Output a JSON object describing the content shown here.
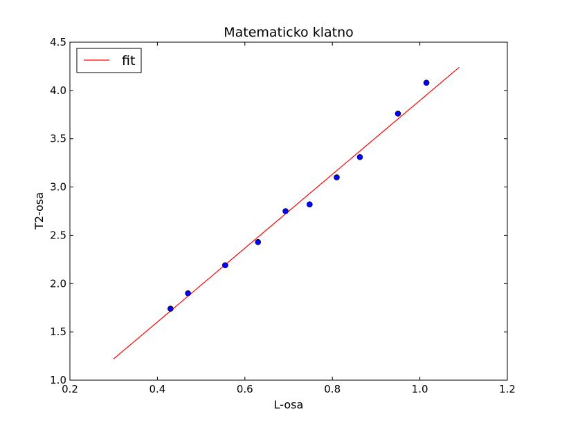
{
  "chart_data": {
    "type": "scatter",
    "title": "Matematicko klatno",
    "xlabel": "L-osa",
    "ylabel": "T2-osa",
    "xlim": [
      0.2,
      1.2
    ],
    "ylim": [
      1.0,
      4.5
    ],
    "xticks": [
      0.2,
      0.4,
      0.6,
      0.8,
      1.0,
      1.2
    ],
    "yticks": [
      1.0,
      1.5,
      2.0,
      2.5,
      3.0,
      3.5,
      4.0,
      4.5
    ],
    "xtick_labels": [
      "0.2",
      "0.4",
      "0.6",
      "0.8",
      "1.0",
      "1.2"
    ],
    "ytick_labels": [
      "1.0",
      "1.5",
      "2.0",
      "2.5",
      "3.0",
      "3.5",
      "4.0",
      "4.5"
    ],
    "grid": false,
    "legend_position": "top-left",
    "series": [
      {
        "name": "fit",
        "kind": "line",
        "color": "#ff0000",
        "x": [
          0.3,
          1.09
        ],
        "y": [
          1.22,
          4.24
        ]
      },
      {
        "kind": "points",
        "color": "#0000ff",
        "x": [
          0.43,
          0.47,
          0.555,
          0.63,
          0.693,
          0.748,
          0.81,
          0.863,
          0.95,
          1.015
        ],
        "y": [
          1.74,
          1.9,
          2.19,
          2.43,
          2.75,
          2.82,
          3.1,
          3.31,
          3.76,
          4.08
        ]
      }
    ]
  }
}
